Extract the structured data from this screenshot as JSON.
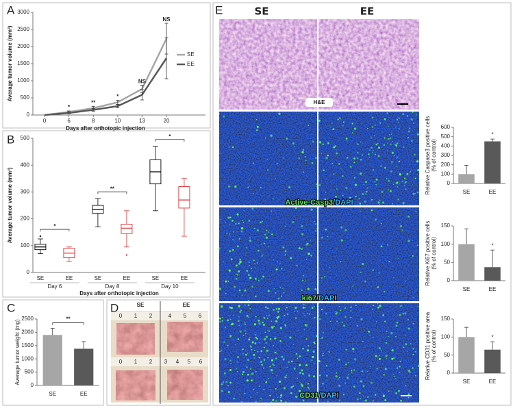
{
  "panel_labels": [
    "A",
    "B",
    "C",
    "D",
    "E"
  ],
  "panel_d": {
    "columns": [
      "SE",
      "EE"
    ],
    "rulers": [
      [
        0,
        1,
        2
      ],
      [
        4,
        5,
        6
      ],
      [
        0,
        1,
        2
      ],
      [
        3,
        4,
        5,
        6
      ]
    ]
  },
  "panel_e": {
    "columns": [
      "SE",
      "EE"
    ],
    "he": "H&E",
    "stains": [
      [
        "Active-Casp3",
        "/DAPI"
      ],
      [
        "ki67",
        "/DAPI"
      ],
      [
        "CD31",
        "/DAPI"
      ]
    ]
  },
  "chart_data": [
    {
      "type": "line",
      "y_label": "Average tumor volume (mm³)",
      "x_label": "Days after orthotopic injection",
      "categories": [
        "0",
        "6",
        "8",
        "10",
        "13",
        "20"
      ],
      "series": [
        {
          "name": "SE",
          "color": "#a6a6a6",
          "values": [
            0,
            90,
            200,
            370,
            760,
            2230
          ],
          "errors": [
            0,
            30,
            50,
            60,
            110,
            450
          ]
        },
        {
          "name": "EE",
          "color": "#595959",
          "values": [
            0,
            60,
            150,
            260,
            590,
            1660
          ],
          "errors": [
            0,
            25,
            40,
            50,
            150,
            600
          ]
        }
      ],
      "significance": [
        null,
        "*",
        "**",
        "*",
        "NS",
        "NS"
      ],
      "ylim": [
        0,
        3000
      ],
      "yticks": [
        0,
        500,
        1000,
        1500,
        2000,
        2500,
        3000
      ],
      "legend": "right"
    },
    {
      "type": "box",
      "y_label": "Average tumor volume (mm³)",
      "x_label": "Days after orthotopic injection",
      "categories": [
        "Day 6",
        "Day 8",
        "Day 10"
      ],
      "series": [
        {
          "name": "SE",
          "color": "#000000",
          "min": [
            70,
            170,
            230
          ],
          "q1": [
            85,
            220,
            330
          ],
          "median": [
            95,
            235,
            375
          ],
          "q3": [
            105,
            250,
            420
          ],
          "max": [
            125,
            275,
            470
          ],
          "outliers": [
            [
              135
            ],
            [],
            []
          ]
        },
        {
          "name": "EE",
          "color": "#e03030",
          "min": [
            40,
            95,
            135
          ],
          "q1": [
            55,
            145,
            240
          ],
          "median": [
            72,
            165,
            270
          ],
          "q3": [
            90,
            180,
            320
          ],
          "max": [
            95,
            230,
            350
          ],
          "outliers": [
            [],
            [
              65
            ],
            []
          ]
        }
      ],
      "significance": [
        "*",
        "**",
        "*"
      ],
      "ylim": [
        0,
        500
      ],
      "yticks": [
        0,
        100,
        200,
        300,
        400,
        500
      ]
    },
    {
      "type": "bar",
      "y_label": [
        "Average tumor weight (mg)"
      ],
      "categories": [
        "SE",
        "EE"
      ],
      "values": [
        1900,
        1380
      ],
      "errors": [
        250,
        270
      ],
      "colors": [
        "#a6a6a6",
        "#595959"
      ],
      "bracket": "**",
      "ylim": [
        0,
        2500
      ],
      "yticks": [
        0,
        500,
        1000,
        1500,
        2000,
        2500
      ]
    },
    {
      "type": "bar",
      "y_label": [
        "Relative Caspase3 positive cells",
        "(% of control)"
      ],
      "categories": [
        "SE",
        "EE"
      ],
      "values": [
        100,
        450
      ],
      "errors": [
        95,
        25
      ],
      "colors": [
        "#a6a6a6",
        "#595959"
      ],
      "significance": [
        null,
        "*"
      ],
      "ylim": [
        0,
        600
      ],
      "yticks": [
        0,
        100,
        200,
        300,
        400,
        500,
        600
      ]
    },
    {
      "type": "bar",
      "y_label": [
        "Relative Ki67 positive cells",
        "(% of control)"
      ],
      "categories": [
        "SE",
        "EE"
      ],
      "values": [
        100,
        37
      ],
      "errors": [
        42,
        47
      ],
      "colors": [
        "#a6a6a6",
        "#595959"
      ],
      "significance": [
        null,
        "*"
      ],
      "ylim": [
        0,
        150
      ],
      "yticks": [
        0,
        50,
        100,
        150
      ]
    },
    {
      "type": "bar",
      "y_label": [
        "Relative CD31 positive area",
        "(% of control)"
      ],
      "categories": [
        "SE",
        "EE"
      ],
      "values": [
        100,
        65
      ],
      "errors": [
        27,
        22
      ],
      "colors": [
        "#a6a6a6",
        "#595959"
      ],
      "significance": [
        null,
        "*"
      ],
      "ylim": [
        0,
        150
      ],
      "yticks": [
        0,
        50,
        100,
        150
      ]
    }
  ]
}
